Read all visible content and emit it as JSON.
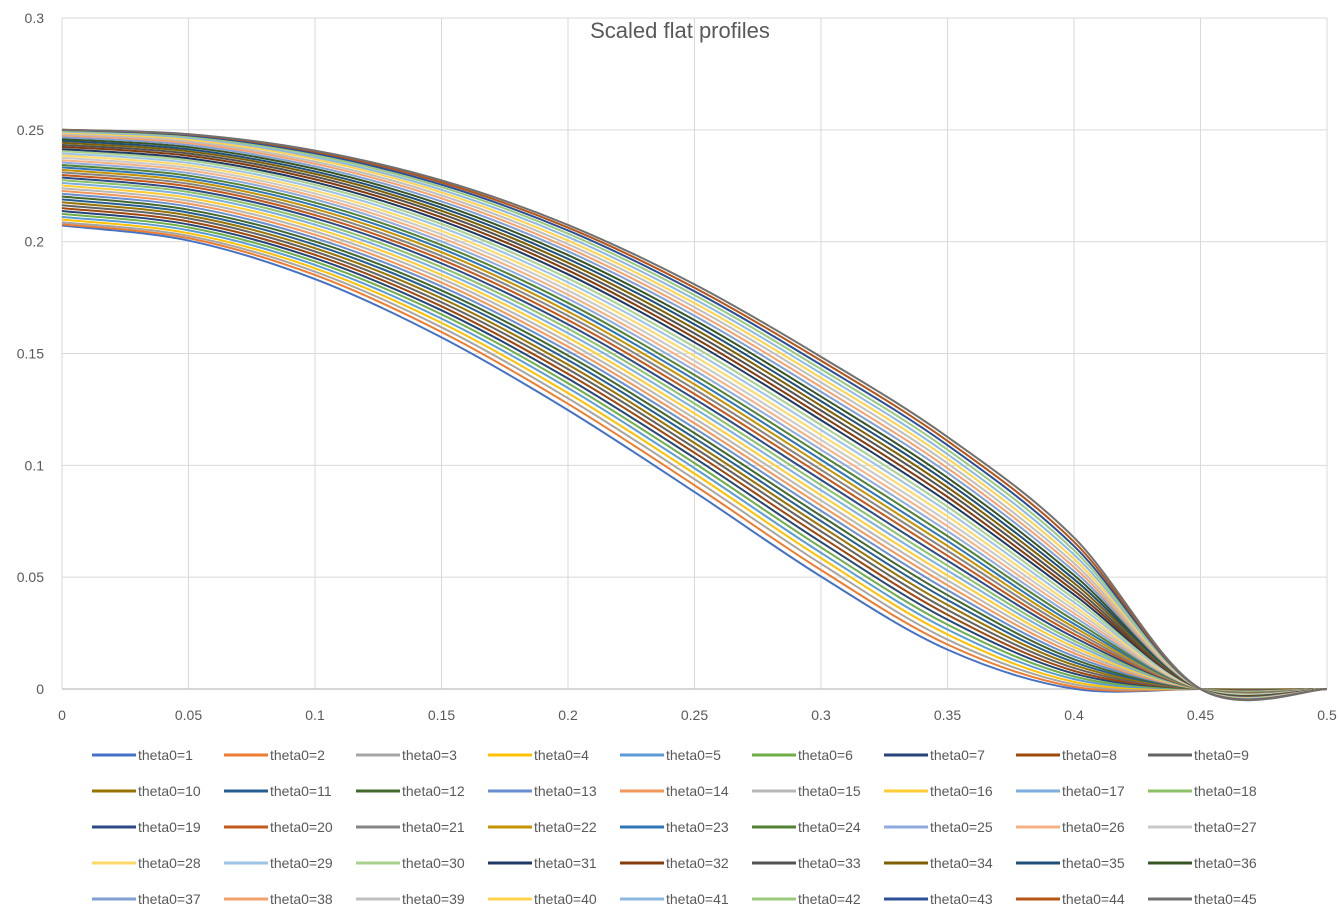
{
  "chart_data": {
    "type": "line",
    "title": "Scaled flat profiles",
    "xlabel": "",
    "ylabel": "",
    "xlim": [
      0,
      0.5
    ],
    "ylim": [
      0,
      0.3
    ],
    "x_ticks": [
      "0",
      "0.05",
      "0.1",
      "0.15",
      "0.2",
      "0.25",
      "0.3",
      "0.35",
      "0.4",
      "0.45",
      "0.5"
    ],
    "y_ticks": [
      "0",
      "0.05",
      "0.1",
      "0.15",
      "0.2",
      "0.25",
      "0.3"
    ],
    "grid": true,
    "legend_position": "bottom",
    "x": [
      0,
      0.05,
      0.1,
      0.15,
      0.2,
      0.25,
      0.3,
      0.35,
      0.4,
      0.45,
      0.5
    ],
    "palette": [
      "#4472C4",
      "#ED7D31",
      "#A5A5A5",
      "#FFC000",
      "#5B9BD5",
      "#70AD47",
      "#264478",
      "#9E480E",
      "#636363",
      "#997300",
      "#255E91",
      "#43682B",
      "#698ED0",
      "#F1975A",
      "#B7B7B7",
      "#FFCD33",
      "#7CAFDD",
      "#8CC168",
      "#2E4A86",
      "#C35A1C",
      "#848484",
      "#C59300",
      "#2E75B6",
      "#548235",
      "#8FAADC",
      "#F4B183",
      "#C9C9C9",
      "#FFD966",
      "#9DC3E6",
      "#A9D18E",
      "#1F3864",
      "#843C0C",
      "#525252",
      "#7F6000",
      "#1F4E79",
      "#375623",
      "#7F9FD5",
      "#F3A26E",
      "#BFBFBF",
      "#FFD34D",
      "#8DB9E1",
      "#9BC97B",
      "#2C4F9A",
      "#B55415",
      "#707070"
    ],
    "series": [
      {
        "name": "theta0=1",
        "values": [
          0.2072,
          0.2005,
          0.1833,
          0.1572,
          0.1247,
          0.0881,
          0.0503,
          0.0176,
          0.0001,
          0,
          0
        ]
      },
      {
        "name": "theta0=2",
        "values": [
          0.2078,
          0.2016,
          0.1851,
          0.1596,
          0.1275,
          0.0911,
          0.0532,
          0.0199,
          0.001,
          0,
          0
        ]
      },
      {
        "name": "theta0=3",
        "values": [
          0.2087,
          0.2026,
          0.1866,
          0.1617,
          0.13,
          0.0938,
          0.056,
          0.0221,
          0.0021,
          0,
          0
        ]
      },
      {
        "name": "theta0=4",
        "values": [
          0.2099,
          0.2038,
          0.1881,
          0.1637,
          0.1323,
          0.0963,
          0.0585,
          0.0244,
          0.0032,
          0,
          0
        ]
      },
      {
        "name": "theta0=5",
        "values": [
          0.2111,
          0.2051,
          0.1896,
          0.1656,
          0.1346,
          0.0987,
          0.0609,
          0.0266,
          0.0044,
          0,
          0
        ]
      },
      {
        "name": "theta0=6",
        "values": [
          0.2124,
          0.2064,
          0.1911,
          0.1675,
          0.1367,
          0.101,
          0.0633,
          0.0288,
          0.0056,
          0,
          0
        ]
      },
      {
        "name": "theta0=7",
        "values": [
          0.2137,
          0.2077,
          0.1926,
          0.1693,
          0.1388,
          0.1033,
          0.0657,
          0.031,
          0.0069,
          0,
          0
        ]
      },
      {
        "name": "theta0=8",
        "values": [
          0.215,
          0.209,
          0.1941,
          0.1711,
          0.1409,
          0.1056,
          0.0681,
          0.0332,
          0.0081,
          0,
          0
        ]
      },
      {
        "name": "theta0=9",
        "values": [
          0.2163,
          0.2104,
          0.1956,
          0.1729,
          0.143,
          0.1078,
          0.0705,
          0.0354,
          0.0094,
          0,
          0
        ]
      },
      {
        "name": "theta0=10",
        "values": [
          0.2176,
          0.2117,
          0.1971,
          0.1747,
          0.145,
          0.11,
          0.0728,
          0.0376,
          0.0107,
          0,
          0
        ]
      },
      {
        "name": "theta0=11",
        "values": [
          0.2189,
          0.213,
          0.1986,
          0.1765,
          0.1471,
          0.1122,
          0.0751,
          0.0398,
          0.012,
          0,
          0
        ]
      },
      {
        "name": "theta0=12",
        "values": [
          0.2202,
          0.2143,
          0.2001,
          0.1782,
          0.1491,
          0.1144,
          0.0774,
          0.042,
          0.0133,
          0,
          0
        ]
      },
      {
        "name": "theta0=13",
        "values": [
          0.2214,
          0.2157,
          0.2016,
          0.18,
          0.1511,
          0.1166,
          0.0797,
          0.0442,
          0.0146,
          0,
          0
        ]
      },
      {
        "name": "theta0=14",
        "values": [
          0.2227,
          0.217,
          0.2031,
          0.1817,
          0.1531,
          0.1188,
          0.082,
          0.0464,
          0.016,
          0,
          0
        ]
      },
      {
        "name": "theta0=15",
        "values": [
          0.2239,
          0.2183,
          0.2046,
          0.1835,
          0.1551,
          0.121,
          0.0843,
          0.0486,
          0.0174,
          0,
          0
        ]
      },
      {
        "name": "theta0=16",
        "values": [
          0.2251,
          0.2196,
          0.2061,
          0.1852,
          0.1571,
          0.1232,
          0.0866,
          0.0508,
          0.0188,
          0,
          0
        ]
      },
      {
        "name": "theta0=17",
        "values": [
          0.2263,
          0.2209,
          0.2076,
          0.1869,
          0.1591,
          0.1254,
          0.0889,
          0.053,
          0.0202,
          0,
          0
        ]
      },
      {
        "name": "theta0=18",
        "values": [
          0.2275,
          0.2222,
          0.209,
          0.1886,
          0.1611,
          0.1276,
          0.0912,
          0.0552,
          0.0216,
          0,
          0
        ]
      },
      {
        "name": "theta0=19",
        "values": [
          0.2287,
          0.2234,
          0.2105,
          0.1903,
          0.163,
          0.1297,
          0.0935,
          0.0574,
          0.0231,
          0,
          0
        ]
      },
      {
        "name": "theta0=20",
        "values": [
          0.2298,
          0.2247,
          0.2119,
          0.192,
          0.165,
          0.1319,
          0.0958,
          0.0596,
          0.0246,
          0,
          0
        ]
      },
      {
        "name": "theta0=21",
        "values": [
          0.231,
          0.2259,
          0.2133,
          0.1936,
          0.1669,
          0.134,
          0.098,
          0.0618,
          0.0261,
          0,
          0
        ]
      },
      {
        "name": "theta0=22",
        "values": [
          0.2321,
          0.2271,
          0.2147,
          0.1953,
          0.1688,
          0.1362,
          0.1003,
          0.064,
          0.0276,
          0,
          0
        ]
      },
      {
        "name": "theta0=23",
        "values": [
          0.2332,
          0.2283,
          0.2161,
          0.1969,
          0.1707,
          0.1383,
          0.1025,
          0.0662,
          0.0291,
          0,
          0
        ]
      },
      {
        "name": "theta0=24",
        "values": [
          0.2343,
          0.2295,
          0.2175,
          0.1985,
          0.1726,
          0.1404,
          0.1048,
          0.0684,
          0.0307,
          0,
          0
        ]
      },
      {
        "name": "theta0=25",
        "values": [
          0.2354,
          0.2307,
          0.2189,
          0.2001,
          0.1745,
          0.1425,
          0.107,
          0.0706,
          0.0323,
          0,
          0
        ]
      },
      {
        "name": "theta0=26",
        "values": [
          0.2364,
          0.2319,
          0.2202,
          0.2017,
          0.1763,
          0.1446,
          0.1092,
          0.0728,
          0.0339,
          0,
          0
        ]
      },
      {
        "name": "theta0=27",
        "values": [
          0.2375,
          0.233,
          0.2215,
          0.2033,
          0.1782,
          0.1467,
          0.1114,
          0.075,
          0.0355,
          0,
          0
        ]
      },
      {
        "name": "theta0=28",
        "values": [
          0.2385,
          0.2341,
          0.2228,
          0.2048,
          0.18,
          0.1488,
          0.1136,
          0.0772,
          0.0371,
          0,
          0
        ]
      },
      {
        "name": "theta0=29",
        "values": [
          0.2395,
          0.2352,
          0.2241,
          0.2064,
          0.1818,
          0.1509,
          0.1158,
          0.0794,
          0.0388,
          0,
          0
        ]
      },
      {
        "name": "theta0=30",
        "values": [
          0.2405,
          0.2363,
          0.2254,
          0.2079,
          0.1836,
          0.1529,
          0.118,
          0.0815,
          0.0405,
          0,
          0
        ]
      },
      {
        "name": "theta0=31",
        "values": [
          0.2414,
          0.2373,
          0.2266,
          0.2094,
          0.1854,
          0.155,
          0.1202,
          0.0837,
          0.0422,
          0,
          0
        ]
      },
      {
        "name": "theta0=32",
        "values": [
          0.2424,
          0.2384,
          0.2279,
          0.2109,
          0.1872,
          0.157,
          0.1223,
          0.0859,
          0.0439,
          0,
          0
        ]
      },
      {
        "name": "theta0=33",
        "values": [
          0.2433,
          0.2394,
          0.2291,
          0.2124,
          0.1889,
          0.159,
          0.1245,
          0.0881,
          0.0456,
          0,
          0
        ]
      },
      {
        "name": "theta0=34",
        "values": [
          0.2442,
          0.2404,
          0.2303,
          0.2138,
          0.1906,
          0.161,
          0.1266,
          0.0902,
          0.0474,
          0,
          0
        ]
      },
      {
        "name": "theta0=35",
        "values": [
          0.2451,
          0.2413,
          0.2314,
          0.2152,
          0.1923,
          0.163,
          0.1287,
          0.0924,
          0.0491,
          0,
          0
        ]
      },
      {
        "name": "theta0=36",
        "values": [
          0.2459,
          0.2423,
          0.2326,
          0.2166,
          0.194,
          0.1649,
          0.1308,
          0.0945,
          0.0509,
          0,
          0
        ]
      },
      {
        "name": "theta0=37",
        "values": [
          0.2467,
          0.2432,
          0.2337,
          0.218,
          0.1957,
          0.1669,
          0.1329,
          0.0967,
          0.0527,
          0,
          0
        ]
      },
      {
        "name": "theta0=38",
        "values": [
          0.2475,
          0.2441,
          0.2348,
          0.2194,
          0.1973,
          0.1688,
          0.135,
          0.0988,
          0.0545,
          0,
          0
        ]
      },
      {
        "name": "theta0=39",
        "values": [
          0.2482,
          0.2449,
          0.2358,
          0.2207,
          0.1989,
          0.1707,
          0.1371,
          0.1009,
          0.0563,
          0,
          0
        ]
      },
      {
        "name": "theta0=40",
        "values": [
          0.2488,
          0.2457,
          0.2369,
          0.222,
          0.2005,
          0.1725,
          0.1391,
          0.103,
          0.0582,
          0,
          0
        ]
      },
      {
        "name": "theta0=41",
        "values": [
          0.2493,
          0.2464,
          0.2378,
          0.2232,
          0.2021,
          0.1743,
          0.1411,
          0.105,
          0.0601,
          0,
          0
        ]
      },
      {
        "name": "theta0=42",
        "values": [
          0.2497,
          0.247,
          0.2387,
          0.2244,
          0.2036,
          0.1761,
          0.143,
          0.107,
          0.062,
          0,
          0
        ]
      },
      {
        "name": "theta0=43",
        "values": [
          0.25,
          0.2475,
          0.2395,
          0.2255,
          0.205,
          0.1778,
          0.1449,
          0.109,
          0.0639,
          0,
          0
        ]
      },
      {
        "name": "theta0=44",
        "values": [
          0.2501,
          0.2479,
          0.2402,
          0.2265,
          0.2063,
          0.1794,
          0.1468,
          0.1109,
          0.0658,
          0,
          0
        ]
      },
      {
        "name": "theta0=45",
        "values": [
          0.25,
          0.2481,
          0.2407,
          0.2274,
          0.2075,
          0.1809,
          0.1485,
          0.1127,
          0.0677,
          0,
          0
        ]
      }
    ]
  }
}
